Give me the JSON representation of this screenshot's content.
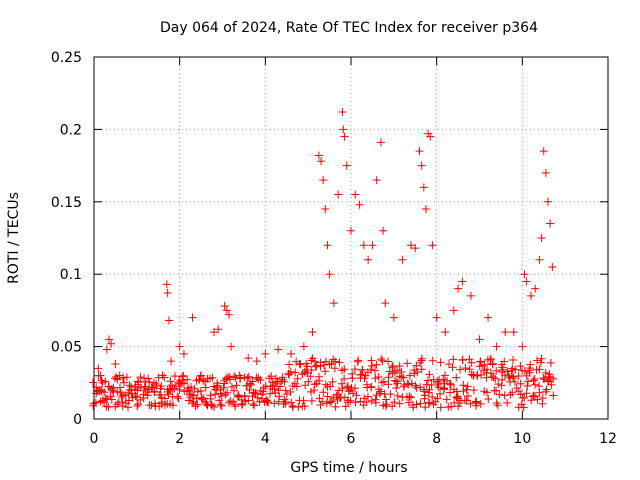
{
  "chart_data": {
    "type": "scatter",
    "title": "Day 064 of 2024, Rate Of TEC Index for receiver p364",
    "xlabel": "GPS time / hours",
    "ylabel": "ROTI / TECUs",
    "xlim": [
      0,
      12
    ],
    "ylim": [
      0,
      0.25
    ],
    "x_ticks": [
      0,
      2,
      4,
      6,
      8,
      10,
      12
    ],
    "x_tick_labels": [
      "0",
      "2",
      "4",
      "6",
      "8",
      "10",
      "12"
    ],
    "y_ticks": [
      0,
      0.05,
      0.1,
      0.15,
      0.2,
      0.25
    ],
    "y_tick_labels": [
      "0",
      "0.05",
      "0.1",
      "0.15",
      "0.2",
      "0.25"
    ],
    "grid": true,
    "marker": "+",
    "color": "#ff0000",
    "series": [
      {
        "name": "ROTI",
        "points": [
          [
            0.05,
            0.022
          ],
          [
            0.1,
            0.035
          ],
          [
            0.15,
            0.03
          ],
          [
            0.2,
            0.025
          ],
          [
            0.3,
            0.048
          ],
          [
            0.35,
            0.055
          ],
          [
            0.4,
            0.052
          ],
          [
            0.5,
            0.038
          ],
          [
            0.6,
            0.03
          ],
          [
            0.7,
            0.025
          ],
          [
            0.8,
            0.018
          ],
          [
            1.0,
            0.015
          ],
          [
            1.2,
            0.02
          ],
          [
            1.4,
            0.025
          ],
          [
            1.6,
            0.03
          ],
          [
            1.7,
            0.093
          ],
          [
            1.72,
            0.087
          ],
          [
            1.75,
            0.068
          ],
          [
            1.8,
            0.04
          ],
          [
            2.0,
            0.05
          ],
          [
            2.1,
            0.045
          ],
          [
            2.3,
            0.07
          ],
          [
            2.5,
            0.03
          ],
          [
            2.8,
            0.06
          ],
          [
            2.9,
            0.062
          ],
          [
            3.05,
            0.078
          ],
          [
            3.1,
            0.075
          ],
          [
            3.15,
            0.072
          ],
          [
            3.2,
            0.05
          ],
          [
            3.4,
            0.03
          ],
          [
            3.6,
            0.042
          ],
          [
            3.8,
            0.04
          ],
          [
            4.0,
            0.045
          ],
          [
            4.3,
            0.048
          ],
          [
            4.6,
            0.045
          ],
          [
            4.9,
            0.05
          ],
          [
            5.1,
            0.06
          ],
          [
            5.25,
            0.182
          ],
          [
            5.3,
            0.178
          ],
          [
            5.35,
            0.165
          ],
          [
            5.4,
            0.145
          ],
          [
            5.45,
            0.12
          ],
          [
            5.5,
            0.1
          ],
          [
            5.6,
            0.08
          ],
          [
            5.7,
            0.155
          ],
          [
            5.8,
            0.212
          ],
          [
            5.82,
            0.2
          ],
          [
            5.85,
            0.195
          ],
          [
            5.9,
            0.175
          ],
          [
            6.0,
            0.13
          ],
          [
            6.1,
            0.155
          ],
          [
            6.2,
            0.148
          ],
          [
            6.3,
            0.12
          ],
          [
            6.4,
            0.11
          ],
          [
            6.5,
            0.12
          ],
          [
            6.6,
            0.165
          ],
          [
            6.7,
            0.191
          ],
          [
            6.75,
            0.13
          ],
          [
            6.8,
            0.08
          ],
          [
            7.0,
            0.07
          ],
          [
            7.2,
            0.11
          ],
          [
            7.4,
            0.12
          ],
          [
            7.5,
            0.118
          ],
          [
            7.6,
            0.185
          ],
          [
            7.65,
            0.175
          ],
          [
            7.7,
            0.16
          ],
          [
            7.75,
            0.145
          ],
          [
            7.8,
            0.197
          ],
          [
            7.85,
            0.195
          ],
          [
            7.9,
            0.12
          ],
          [
            8.0,
            0.07
          ],
          [
            8.2,
            0.06
          ],
          [
            8.4,
            0.075
          ],
          [
            8.5,
            0.09
          ],
          [
            8.6,
            0.095
          ],
          [
            8.8,
            0.085
          ],
          [
            9.0,
            0.055
          ],
          [
            9.2,
            0.07
          ],
          [
            9.4,
            0.05
          ],
          [
            9.6,
            0.06
          ],
          [
            9.8,
            0.06
          ],
          [
            10.0,
            0.05
          ],
          [
            10.05,
            0.1
          ],
          [
            10.1,
            0.095
          ],
          [
            10.2,
            0.085
          ],
          [
            10.3,
            0.09
          ],
          [
            10.4,
            0.11
          ],
          [
            10.45,
            0.125
          ],
          [
            10.5,
            0.185
          ],
          [
            10.55,
            0.17
          ],
          [
            10.6,
            0.15
          ],
          [
            10.65,
            0.135
          ],
          [
            10.7,
            0.105
          ]
        ],
        "baseline": {
          "x_start": 0.0,
          "x_end": 10.7,
          "step": 0.05,
          "band_lo": 0.008,
          "band_hi": 0.03,
          "points_per_step": 3
        }
      }
    ]
  }
}
